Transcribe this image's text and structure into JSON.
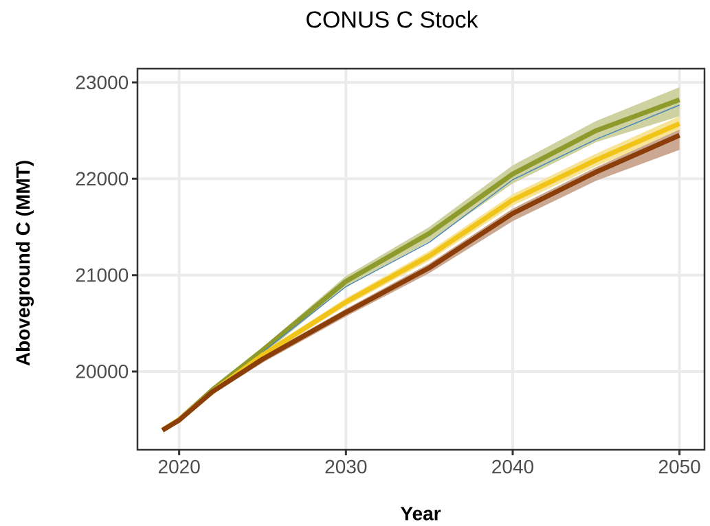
{
  "chart_data": {
    "type": "line",
    "title": "CONUS C Stock",
    "xlabel": "Year",
    "ylabel": "Aboveground C (MMT)",
    "x": [
      2019,
      2020,
      2022,
      2025,
      2030,
      2035,
      2040,
      2045,
      2050
    ],
    "series": [
      {
        "color": "#8f9a2c",
        "values": [
          19390,
          19500,
          19810,
          20220,
          20935,
          21433,
          22050,
          22500,
          22820
        ],
        "lower": [
          19390,
          19490,
          19780,
          20170,
          20880,
          21350,
          21950,
          22380,
          22650
        ],
        "upper": [
          19390,
          19510,
          19830,
          20250,
          20990,
          21500,
          22140,
          22600,
          22950
        ]
      },
      {
        "color": "#4a86b8",
        "values": [
          null,
          null,
          null,
          20200,
          20880,
          21340,
          21990,
          22410,
          22765
        ]
      },
      {
        "color": "#f0c419",
        "values": [
          19390,
          19500,
          19790,
          20170,
          20720,
          21200,
          21780,
          22195,
          22573
        ],
        "lower": [
          19390,
          19490,
          19770,
          20140,
          20680,
          21150,
          21720,
          22130,
          22480
        ],
        "upper": [
          19390,
          19510,
          19810,
          20200,
          20760,
          21250,
          21840,
          22260,
          22650
        ]
      },
      {
        "color": "#8b3e0a",
        "values": [
          19390,
          19494,
          19790,
          20128,
          20613,
          21076,
          21640,
          22070,
          22452
        ],
        "lower": [
          19390,
          19480,
          19760,
          20090,
          20570,
          21020,
          21560,
          21980,
          22300
        ],
        "upper": [
          19390,
          19505,
          19810,
          20160,
          20650,
          21120,
          21690,
          22120,
          22510
        ]
      }
    ],
    "xlim": [
      2017.5,
      2051.5
    ],
    "ylim": [
      19187,
      23143
    ],
    "xticks": [
      2020,
      2030,
      2040,
      2050
    ],
    "yticks": [
      20000,
      21000,
      22000,
      23000
    ],
    "grid": true,
    "marker": "none",
    "line_style": "solid"
  }
}
